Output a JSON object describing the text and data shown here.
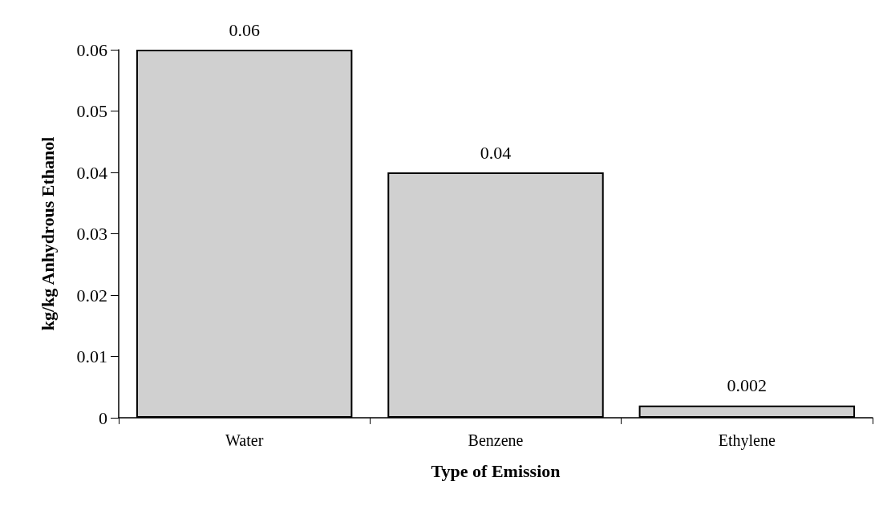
{
  "chart_data": {
    "type": "bar",
    "xlabel": "Type of Emission",
    "ylabel": "kg/kg Anhydrous Ethanol",
    "categories": [
      "Water",
      "Benzene",
      "Ethylene"
    ],
    "values": [
      0.06,
      0.04,
      0.002
    ],
    "color": "#d0d0d0",
    "ylim": [
      0,
      0.06
    ],
    "yticks": [
      0,
      0.01,
      0.02,
      0.03,
      0.04,
      0.05,
      0.06
    ],
    "data_labels": true
  }
}
